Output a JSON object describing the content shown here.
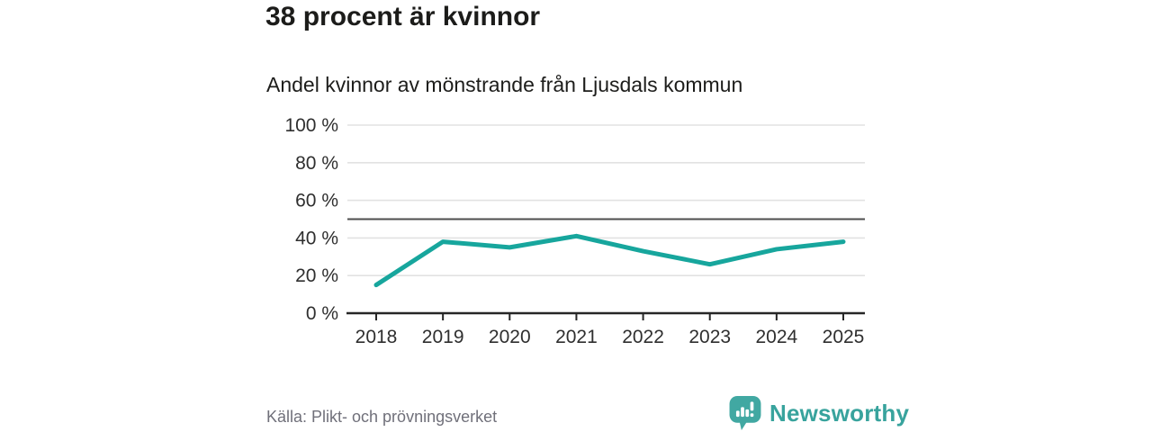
{
  "header": {
    "title": "38 procent är kvinnor",
    "subtitle": "Andel kvinnor av mönstrande från Ljusdals kommun"
  },
  "chart_data": {
    "type": "line",
    "title": "38 procent är kvinnor",
    "subtitle": "Andel kvinnor av mönstrande från Ljusdals kommun",
    "x": [
      "2018",
      "2019",
      "2020",
      "2021",
      "2022",
      "2023",
      "2024",
      "2025"
    ],
    "series": [
      {
        "name": "Andel kvinnor av mönstrande",
        "values": [
          15,
          38,
          35,
          41,
          33,
          26,
          34,
          38
        ]
      }
    ],
    "ylim": [
      0,
      100
    ],
    "yticks": [
      0,
      20,
      40,
      60,
      80,
      100
    ],
    "ytick_labels": [
      "0 %",
      "20 %",
      "40 %",
      "60 %",
      "80 %",
      "100 %"
    ],
    "reference_line": 50,
    "grid": true,
    "legend": false,
    "line_color": "#17a69d",
    "reference_line_color": "#4d4d4d",
    "grid_color": "#e2e2e2",
    "axis_color": "#262626",
    "tick_label_color": "#2f2f2f"
  },
  "footer": {
    "source": "Källa: Plikt- och prövningsverket",
    "brand": "Newsworthy",
    "brand_color": "#38a39d",
    "logo_color": "#41a8a2"
  }
}
